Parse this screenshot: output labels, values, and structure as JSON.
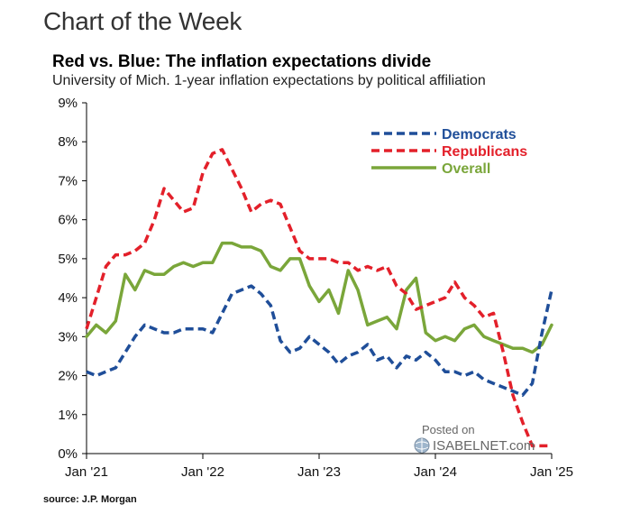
{
  "header": {
    "title": "Chart of the Week"
  },
  "chart_data": {
    "type": "line",
    "title": "Red vs. Blue: The inflation expectations divide",
    "subtitle": "University of Mich. 1-year inflation expectations by political affiliation",
    "xlabel": "",
    "ylabel": "",
    "ylim": [
      0,
      9
    ],
    "xlim": [
      0,
      48
    ],
    "yticks": [
      0,
      1,
      2,
      3,
      4,
      5,
      6,
      7,
      8,
      9
    ],
    "ytick_labels": [
      "0%",
      "1%",
      "2%",
      "3%",
      "4%",
      "5%",
      "6%",
      "7%",
      "8%",
      "9%"
    ],
    "xticks": [
      0,
      12,
      24,
      36,
      48
    ],
    "xtick_labels": [
      "Jan '21",
      "Jan '22",
      "Jan '23",
      "Jan '24",
      "Jan '25"
    ],
    "legend_position": "top-right",
    "series": [
      {
        "name": "Democrats",
        "color": "#1f4e99",
        "style": "dashed",
        "x": [
          0,
          1,
          2,
          3,
          4,
          5,
          6,
          7,
          8,
          9,
          10,
          11,
          12,
          13,
          14,
          15,
          16,
          17,
          18,
          19,
          20,
          21,
          22,
          23,
          24,
          25,
          26,
          27,
          28,
          29,
          30,
          31,
          32,
          33,
          34,
          35,
          36,
          37,
          38,
          39,
          40,
          41,
          42,
          43,
          44,
          45,
          46,
          47,
          48
        ],
        "values": [
          2.1,
          2.0,
          2.1,
          2.2,
          2.6,
          3.0,
          3.3,
          3.2,
          3.1,
          3.1,
          3.2,
          3.2,
          3.2,
          3.1,
          3.6,
          4.1,
          4.2,
          4.3,
          4.1,
          3.8,
          2.9,
          2.6,
          2.7,
          3.0,
          2.8,
          2.6,
          2.3,
          2.5,
          2.6,
          2.8,
          2.4,
          2.5,
          2.2,
          2.5,
          2.4,
          2.6,
          2.4,
          2.1,
          2.1,
          2.0,
          2.1,
          1.9,
          1.8,
          1.7,
          1.6,
          1.5,
          1.8,
          3.1,
          4.2
        ]
      },
      {
        "name": "Republicans",
        "color": "#e3202a",
        "style": "dashed",
        "x": [
          0,
          1,
          2,
          3,
          4,
          5,
          6,
          7,
          8,
          9,
          10,
          11,
          12,
          13,
          14,
          15,
          16,
          17,
          18,
          19,
          20,
          21,
          22,
          23,
          24,
          25,
          26,
          27,
          28,
          29,
          30,
          31,
          32,
          33,
          34,
          35,
          36,
          37,
          38,
          39,
          40,
          41,
          42,
          43,
          44,
          45,
          46,
          47,
          48
        ],
        "values": [
          3.2,
          4.0,
          4.8,
          5.1,
          5.1,
          5.2,
          5.4,
          6.0,
          6.8,
          6.5,
          6.2,
          6.3,
          7.2,
          7.7,
          7.8,
          7.3,
          6.8,
          6.2,
          6.4,
          6.5,
          6.4,
          5.8,
          5.2,
          5.0,
          5.0,
          5.0,
          4.9,
          4.9,
          4.7,
          4.8,
          4.7,
          4.8,
          4.3,
          4.1,
          3.7,
          3.8,
          3.9,
          4.0,
          4.4,
          4.0,
          3.8,
          3.5,
          3.6,
          2.6,
          1.5,
          0.8,
          0.2,
          0.2,
          0.2
        ]
      },
      {
        "name": "Overall",
        "color": "#7aa63a",
        "style": "solid",
        "x": [
          0,
          1,
          2,
          3,
          4,
          5,
          6,
          7,
          8,
          9,
          10,
          11,
          12,
          13,
          14,
          15,
          16,
          17,
          18,
          19,
          20,
          21,
          22,
          23,
          24,
          25,
          26,
          27,
          28,
          29,
          30,
          31,
          32,
          33,
          34,
          35,
          36,
          37,
          38,
          39,
          40,
          41,
          42,
          43,
          44,
          45,
          46,
          47,
          48
        ],
        "values": [
          3.0,
          3.3,
          3.1,
          3.4,
          4.6,
          4.2,
          4.7,
          4.6,
          4.6,
          4.8,
          4.9,
          4.8,
          4.9,
          4.9,
          5.4,
          5.4,
          5.3,
          5.3,
          5.2,
          4.8,
          4.7,
          5.0,
          5.0,
          4.3,
          3.9,
          4.2,
          3.6,
          4.7,
          4.2,
          3.3,
          3.4,
          3.5,
          3.2,
          4.2,
          4.5,
          3.1,
          2.9,
          3.0,
          2.9,
          3.2,
          3.3,
          3.0,
          2.9,
          2.8,
          2.7,
          2.7,
          2.6,
          2.8,
          3.3
        ]
      }
    ]
  },
  "watermark": {
    "posted_on": "Posted on",
    "brand": "ISABELNET.com"
  },
  "source": "source: J.P. Morgan"
}
